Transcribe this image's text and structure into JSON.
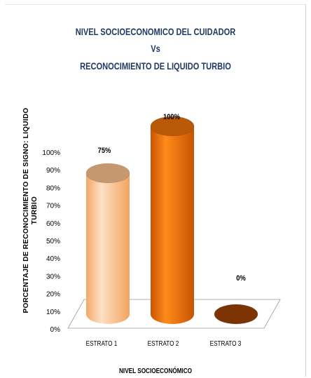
{
  "chart_data": {
    "type": "bar",
    "title_lines": [
      "NIVEL SOCIOECONOMICO DEL CUIDADOR",
      "Vs",
      "RECONOCIMIENTO DE LIQUIDO TURBIO"
    ],
    "categories": [
      "ESTRATO 1",
      "ESTRATO 2",
      "ESTRATO 3"
    ],
    "values": [
      75,
      100,
      0
    ],
    "data_labels": [
      "75%",
      "100%",
      "0%"
    ],
    "colors": [
      "#f9c08e",
      "#e8700a",
      "#8a3a06"
    ],
    "ylim": [
      0,
      100
    ],
    "yticks": [
      "0%",
      "10%",
      "20%",
      "30%",
      "40%",
      "50%",
      "60%",
      "70%",
      "80%",
      "90%",
      "100%"
    ],
    "xlabel": "NIVEL SOCIOECONÓMICO",
    "ylabel_lines": [
      "PORCENTAJE DE RECONOCIMIENTO DE SIGNO: LIQUIDO",
      "TURBIO"
    ],
    "grid": false,
    "bar_shape": "3d-cylinder"
  }
}
